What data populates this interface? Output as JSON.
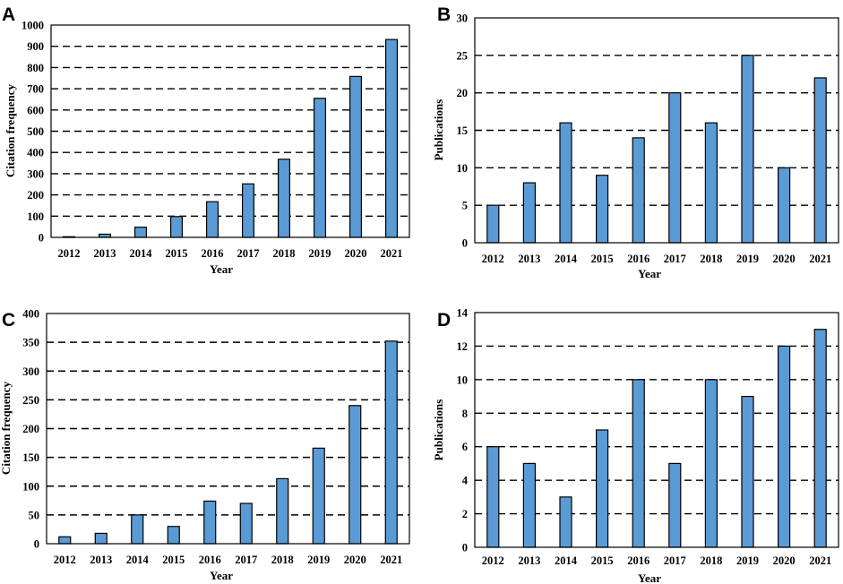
{
  "colors": {
    "bar_fill": "#5b9bd5",
    "bar_stroke": "#000000",
    "grid": "#000000"
  },
  "chart_data": [
    {
      "panel": "A",
      "type": "bar",
      "categories": [
        "2012",
        "2013",
        "2014",
        "2015",
        "2016",
        "2017",
        "2018",
        "2019",
        "2020",
        "2021"
      ],
      "values": [
        3,
        15,
        48,
        98,
        168,
        252,
        368,
        655,
        758,
        932
      ],
      "xlabel": "Year",
      "ylabel": "Citation frequency",
      "ylim": [
        0,
        1000
      ],
      "yticks": [
        0,
        100,
        200,
        300,
        400,
        500,
        600,
        700,
        800,
        900,
        1000
      ],
      "grid": true
    },
    {
      "panel": "B",
      "type": "bar",
      "categories": [
        "2012",
        "2013",
        "2014",
        "2015",
        "2016",
        "2017",
        "2018",
        "2019",
        "2020",
        "2021"
      ],
      "values": [
        5,
        8,
        16,
        9,
        14,
        20,
        16,
        25,
        10,
        22
      ],
      "xlabel": "Year",
      "ylabel": "Publications",
      "ylim": [
        0,
        30
      ],
      "yticks": [
        0,
        5,
        10,
        15,
        20,
        25,
        30
      ],
      "grid": true
    },
    {
      "panel": "C",
      "type": "bar",
      "categories": [
        "2012",
        "2013",
        "2014",
        "2015",
        "2016",
        "2017",
        "2018",
        "2019",
        "2020",
        "2021"
      ],
      "values": [
        12,
        18,
        50,
        30,
        74,
        70,
        113,
        166,
        240,
        352
      ],
      "xlabel": "Year",
      "ylabel": "Citation frequency",
      "ylim": [
        0,
        400
      ],
      "yticks": [
        0,
        50,
        100,
        150,
        200,
        250,
        300,
        350,
        400
      ],
      "grid": true
    },
    {
      "panel": "D",
      "type": "bar",
      "categories": [
        "2012",
        "2013",
        "2014",
        "2015",
        "2016",
        "2017",
        "2018",
        "2019",
        "2020",
        "2021"
      ],
      "values": [
        6,
        5,
        3,
        7,
        10,
        5,
        10,
        9,
        12,
        13
      ],
      "xlabel": "Year",
      "ylabel": "Publications",
      "ylim": [
        0,
        14
      ],
      "yticks": [
        0,
        2,
        4,
        6,
        8,
        10,
        12,
        14
      ],
      "grid": true
    }
  ]
}
